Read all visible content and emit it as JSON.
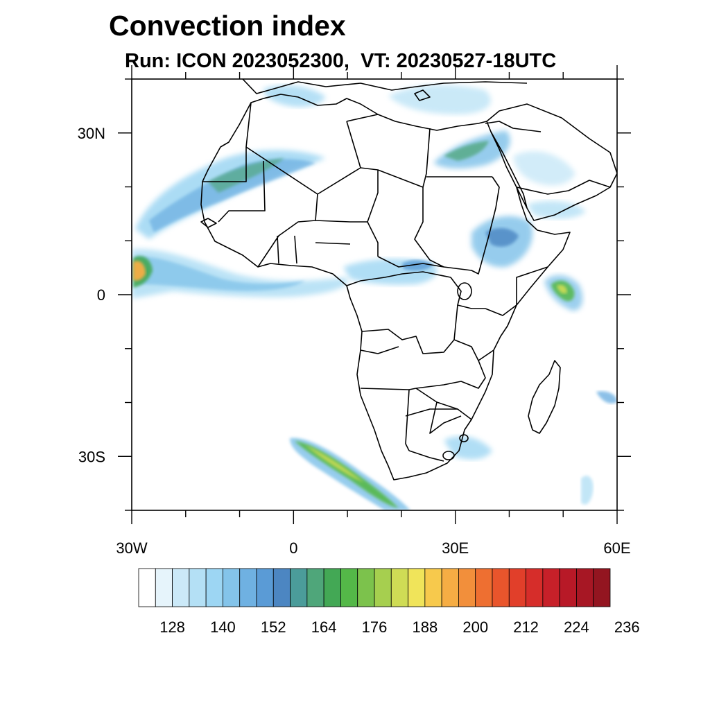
{
  "header": {
    "title": "Convection index",
    "subtitle": "Run: ICON 2023052300,  VT: 20230527-18UTC"
  },
  "map": {
    "lon_range": [
      -30,
      60
    ],
    "lat_range": [
      -40,
      40
    ],
    "lat_ticks": [
      {
        "value": 30,
        "label": "30N"
      },
      {
        "value": 0,
        "label": "0"
      },
      {
        "value": -30,
        "label": "30S"
      }
    ],
    "lon_ticks": [
      {
        "value": -30,
        "label": "30W"
      },
      {
        "value": 0,
        "label": "0"
      },
      {
        "value": 30,
        "label": "30E"
      },
      {
        "value": 60,
        "label": "60E"
      }
    ]
  },
  "colorbar": {
    "labels": [
      "128",
      "140",
      "152",
      "164",
      "176",
      "188",
      "200",
      "212",
      "224",
      "236"
    ],
    "colors": [
      "#ffffff",
      "#e6f4fb",
      "#cbe9f8",
      "#b4e0f5",
      "#9dd6f3",
      "#84c4ea",
      "#6fb1e2",
      "#5a9bd6",
      "#4c86c2",
      "#4b9c9a",
      "#4fa67a",
      "#43a855",
      "#54b848",
      "#7cc24c",
      "#a6cf4f",
      "#cfdc55",
      "#f0e45a",
      "#f7c94c",
      "#f6ad44",
      "#f28f3b",
      "#ee6f31",
      "#e9552c",
      "#e13f2a",
      "#d62d2a",
      "#c72029",
      "#b81927",
      "#a71724",
      "#931520"
    ]
  }
}
